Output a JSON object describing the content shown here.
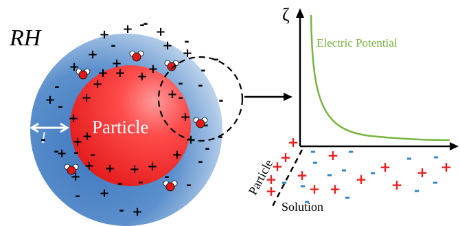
{
  "labels": {
    "rh": "RH",
    "particle": "Particle",
    "thickness": "l",
    "zeta": "ζ",
    "electric_potential": "Electric Potential",
    "interface_particle": "Particle",
    "interface_solution": "Solution"
  },
  "colors": {
    "shell_dark": "#4d84c4",
    "shell_light": "#cfe0f3",
    "particle_core": "#e8201e",
    "particle_highlight": "#ff8a8a",
    "potential_curve": "#78b441",
    "plus_red": "#e62020",
    "minus_blue": "#2f86c9",
    "axis": "#000000"
  },
  "charges": {
    "shell_plus_count": 22,
    "shell_minus_count": 26,
    "water_molecules": 7,
    "solution_plus_count": 14,
    "solution_minus_count": 14
  },
  "icons": [
    "water-molecule-icon",
    "double-arrow-icon",
    "dashed-zoom-circle",
    "arrow-right-icon"
  ]
}
